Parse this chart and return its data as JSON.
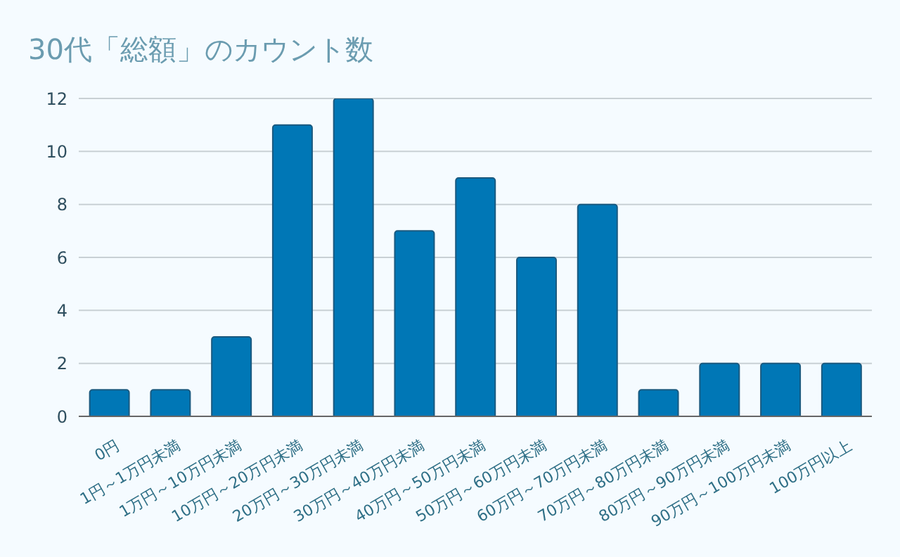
{
  "chart_data": {
    "type": "bar",
    "title": "30代「総額」のカウント数",
    "categories": [
      "0円",
      "1円～1万円未満",
      "1万円～10万円未満",
      "10万円～20万円未満",
      "20万円～30万円未満",
      "30万円～40万円未満",
      "40万円～50万円未満",
      "50万円～60万円未満",
      "60万円～70万円未満",
      "70万円～80万円未満",
      "80万円～90万円未満",
      "90万円～100万円未満",
      "100万円以上"
    ],
    "values": [
      1,
      1,
      3,
      11,
      12,
      7,
      9,
      6,
      8,
      1,
      2,
      2,
      2
    ],
    "color": "#0077b6",
    "ylim": [
      0,
      12
    ],
    "yticks": [
      0,
      2,
      4,
      6,
      8,
      10,
      12
    ],
    "grid": "y",
    "legend": false
  }
}
